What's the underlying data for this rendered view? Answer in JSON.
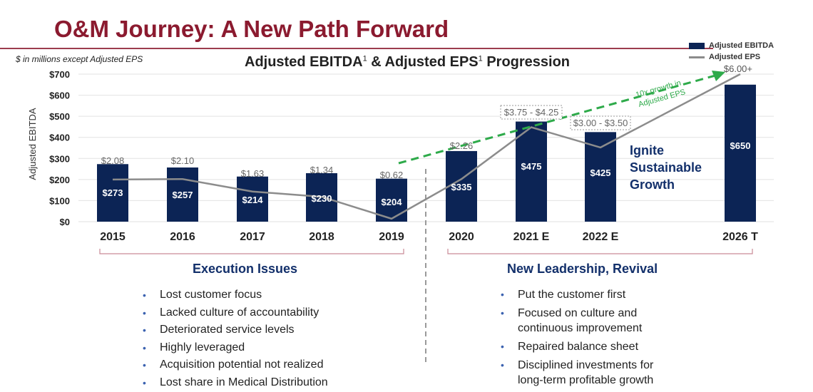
{
  "header": {
    "title": "O&M Journey: A New Path Forward",
    "units_note": "$ in millions except Adjusted EPS",
    "chart_title_main": "Adjusted EBITDA",
    "chart_title_sup1": "1",
    "chart_title_mid": " & Adjusted EPS",
    "chart_title_sup2": "1",
    "chart_title_end": " Progression"
  },
  "chart_data": {
    "type": "bar",
    "title": "Adjusted EBITDA1 & Adjusted EPS1 Progression",
    "ylabel": "Adjusted EBITDA",
    "ylim": [
      0,
      700
    ],
    "y_ticks": [
      "$0",
      "$100",
      "$200",
      "$300",
      "$400",
      "$500",
      "$600",
      "$700"
    ],
    "categories": [
      "2015",
      "2016",
      "2017",
      "2018",
      "2019",
      "2020",
      "2021 E",
      "2022 E",
      "2026 T"
    ],
    "series": [
      {
        "name": "Adjusted EBITDA",
        "type": "bar",
        "color": "#0c2455",
        "values": [
          273,
          257,
          214,
          230,
          204,
          335,
          475,
          425,
          650
        ],
        "labels": [
          "$273",
          "$257",
          "$214",
          "$230",
          "$204",
          "$335",
          "$475",
          "$425",
          "$650"
        ]
      },
      {
        "name": "Adjusted EPS",
        "type": "line",
        "color": "#8c8c8c",
        "values": [
          2.08,
          2.1,
          1.63,
          1.34,
          0.62,
          2.26,
          4.0,
          3.25,
          6.0
        ],
        "labels": [
          "$2.08",
          "$2.10",
          "$1.63",
          "$1.34",
          "$0.62",
          "$2.26",
          "$3.75 - $4.25",
          "$3.00 - $3.50",
          "$6.00+"
        ]
      }
    ],
    "eps_line_levels": [
      200,
      202,
      143,
      118,
      14,
      202,
      448,
      352,
      700
    ],
    "legend": [
      "Adjusted EBITDA",
      "Adjusted EPS"
    ],
    "legend_position": "top-right",
    "annotation": {
      "text_line1": "10x growth in",
      "text_line2": "Adjusted EPS",
      "color": "#2eaa4a"
    },
    "grid": true
  },
  "callout": {
    "line1": "Ignite",
    "line2": "Sustainable",
    "line3": "Growth"
  },
  "left_section": {
    "heading": "Execution Issues",
    "bullets": [
      "Lost customer focus",
      "Lacked culture of accountability",
      "Deteriorated service levels",
      "Highly leveraged",
      "Acquisition potential not realized",
      "Lost share in Medical Distribution"
    ]
  },
  "right_section": {
    "heading": "New Leadership, Revival",
    "bullets": [
      {
        "l1": "Put the customer first",
        "l2": ""
      },
      {
        "l1": "Focused on culture and",
        "l2": "continuous improvement"
      },
      {
        "l1": "Repaired balance sheet",
        "l2": ""
      },
      {
        "l1": "Disciplined investments for",
        "l2": "long-term profitable growth"
      }
    ]
  }
}
